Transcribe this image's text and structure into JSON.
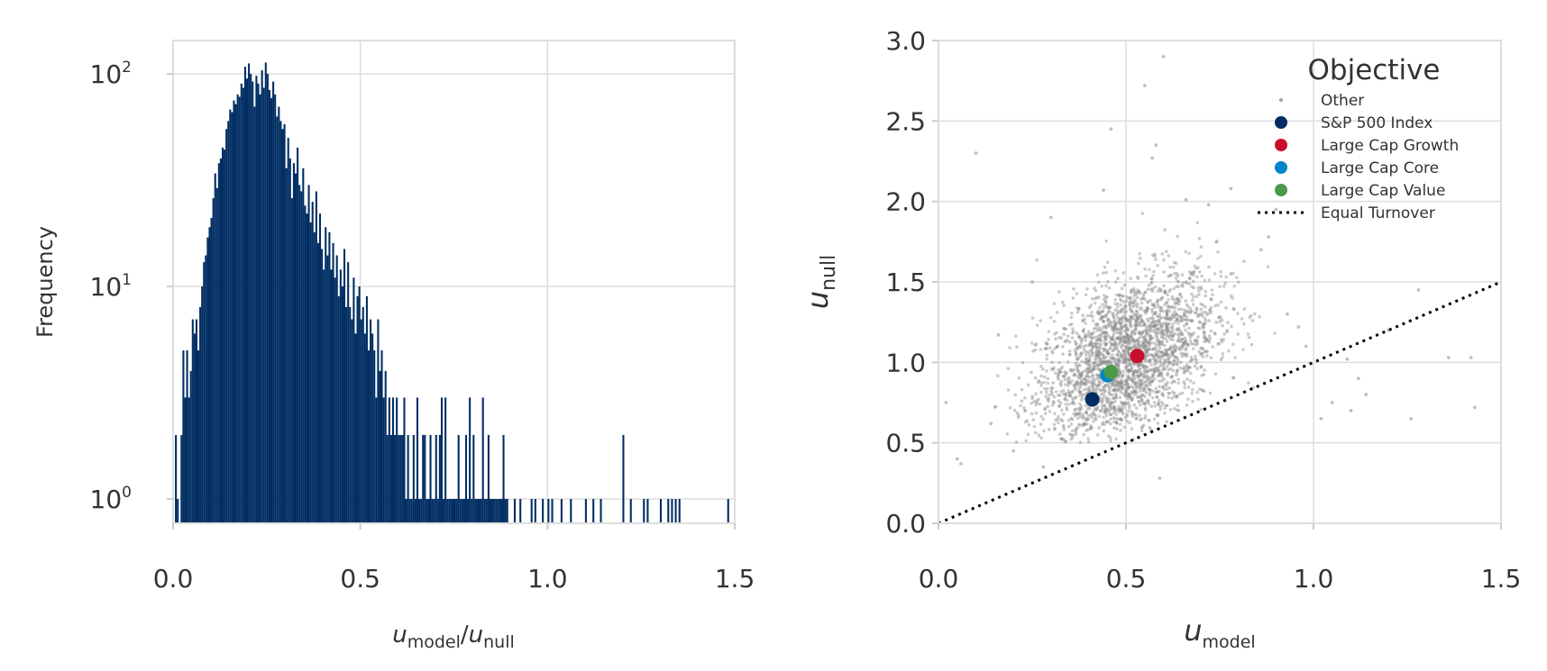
{
  "chart_data": [
    {
      "type": "bar",
      "subtype": "histogram",
      "ylabel": "Frequency",
      "yscale": "log",
      "xlim": [
        0,
        1.5
      ],
      "ylim": [
        0.8,
        150
      ],
      "x_ticks": [
        "0.0",
        "0.5",
        "1.0",
        "1.5"
      ],
      "y_ticks": [
        {
          "base": "10",
          "exp": "2",
          "value": 100
        },
        {
          "base": "10",
          "exp": "1",
          "value": 10
        },
        {
          "base": "10",
          "exp": "0",
          "value": 1
        }
      ],
      "xlabel": {
        "var1": "u",
        "sub1": "model",
        "sep": "/",
        "var2": "u",
        "sub2": "null"
      },
      "grid": true,
      "color": "#002d62",
      "bin_width": 0.005,
      "bins": [
        [
          0.005,
          2
        ],
        [
          0.01,
          1
        ],
        [
          0.02,
          2
        ],
        [
          0.025,
          5
        ],
        [
          0.03,
          3
        ],
        [
          0.035,
          5
        ],
        [
          0.04,
          3
        ],
        [
          0.045,
          4
        ],
        [
          0.05,
          7
        ],
        [
          0.055,
          6
        ],
        [
          0.06,
          7
        ],
        [
          0.065,
          5
        ],
        [
          0.07,
          8
        ],
        [
          0.075,
          10
        ],
        [
          0.08,
          13
        ],
        [
          0.085,
          14
        ],
        [
          0.09,
          17
        ],
        [
          0.095,
          19
        ],
        [
          0.1,
          21
        ],
        [
          0.105,
          26
        ],
        [
          0.11,
          34
        ],
        [
          0.115,
          29
        ],
        [
          0.12,
          38
        ],
        [
          0.125,
          40
        ],
        [
          0.13,
          45
        ],
        [
          0.135,
          44
        ],
        [
          0.14,
          55
        ],
        [
          0.145,
          60
        ],
        [
          0.15,
          68
        ],
        [
          0.155,
          66
        ],
        [
          0.16,
          75
        ],
        [
          0.165,
          72
        ],
        [
          0.17,
          80
        ],
        [
          0.175,
          78
        ],
        [
          0.18,
          90
        ],
        [
          0.185,
          86
        ],
        [
          0.19,
          108
        ],
        [
          0.195,
          95
        ],
        [
          0.2,
          112
        ],
        [
          0.205,
          100
        ],
        [
          0.21,
          92
        ],
        [
          0.215,
          70
        ],
        [
          0.22,
          98
        ],
        [
          0.225,
          90
        ],
        [
          0.23,
          80
        ],
        [
          0.235,
          104
        ],
        [
          0.24,
          86
        ],
        [
          0.245,
          113
        ],
        [
          0.25,
          100
        ],
        [
          0.255,
          84
        ],
        [
          0.26,
          77
        ],
        [
          0.265,
          92
        ],
        [
          0.27,
          80
        ],
        [
          0.275,
          63
        ],
        [
          0.28,
          70
        ],
        [
          0.285,
          60
        ],
        [
          0.29,
          55
        ],
        [
          0.295,
          58
        ],
        [
          0.3,
          36
        ],
        [
          0.305,
          50
        ],
        [
          0.31,
          40
        ],
        [
          0.315,
          26
        ],
        [
          0.32,
          38
        ],
        [
          0.325,
          34
        ],
        [
          0.33,
          45
        ],
        [
          0.335,
          30
        ],
        [
          0.34,
          28
        ],
        [
          0.345,
          36
        ],
        [
          0.35,
          24
        ],
        [
          0.355,
          22
        ],
        [
          0.36,
          30
        ],
        [
          0.365,
          20
        ],
        [
          0.37,
          25
        ],
        [
          0.375,
          18
        ],
        [
          0.38,
          28
        ],
        [
          0.385,
          16
        ],
        [
          0.39,
          22
        ],
        [
          0.395,
          15
        ],
        [
          0.4,
          12
        ],
        [
          0.405,
          19
        ],
        [
          0.41,
          14
        ],
        [
          0.415,
          18
        ],
        [
          0.42,
          12
        ],
        [
          0.425,
          16
        ],
        [
          0.43,
          11
        ],
        [
          0.435,
          14
        ],
        [
          0.44,
          9
        ],
        [
          0.445,
          12
        ],
        [
          0.45,
          10
        ],
        [
          0.455,
          15
        ],
        [
          0.46,
          8
        ],
        [
          0.465,
          13
        ],
        [
          0.47,
          8
        ],
        [
          0.475,
          7
        ],
        [
          0.48,
          11
        ],
        [
          0.485,
          6
        ],
        [
          0.49,
          9
        ],
        [
          0.495,
          10
        ],
        [
          0.5,
          7
        ],
        [
          0.505,
          8
        ],
        [
          0.51,
          6
        ],
        [
          0.515,
          9
        ],
        [
          0.52,
          5
        ],
        [
          0.525,
          7
        ],
        [
          0.53,
          6
        ],
        [
          0.535,
          5
        ],
        [
          0.54,
          3
        ],
        [
          0.545,
          7
        ],
        [
          0.55,
          4
        ],
        [
          0.555,
          5
        ],
        [
          0.56,
          3
        ],
        [
          0.565,
          4
        ],
        [
          0.57,
          2
        ],
        [
          0.575,
          3
        ],
        [
          0.58,
          2
        ],
        [
          0.585,
          3
        ],
        [
          0.59,
          2
        ],
        [
          0.595,
          3
        ],
        [
          0.6,
          2
        ],
        [
          0.605,
          2
        ],
        [
          0.61,
          2
        ],
        [
          0.615,
          3
        ],
        [
          0.62,
          1
        ],
        [
          0.625,
          2
        ],
        [
          0.63,
          1
        ],
        [
          0.635,
          1
        ],
        [
          0.64,
          2
        ],
        [
          0.645,
          1
        ],
        [
          0.65,
          3
        ],
        [
          0.655,
          1
        ],
        [
          0.66,
          1
        ],
        [
          0.665,
          2
        ],
        [
          0.67,
          2
        ],
        [
          0.675,
          1
        ],
        [
          0.68,
          1
        ],
        [
          0.685,
          2
        ],
        [
          0.69,
          1
        ],
        [
          0.695,
          1
        ],
        [
          0.7,
          2
        ],
        [
          0.705,
          1
        ],
        [
          0.71,
          2
        ],
        [
          0.715,
          3
        ],
        [
          0.72,
          1
        ],
        [
          0.725,
          3
        ],
        [
          0.73,
          1
        ],
        [
          0.735,
          1
        ],
        [
          0.74,
          1
        ],
        [
          0.745,
          1
        ],
        [
          0.75,
          1
        ],
        [
          0.755,
          1
        ],
        [
          0.76,
          2
        ],
        [
          0.765,
          1
        ],
        [
          0.77,
          1
        ],
        [
          0.775,
          1
        ],
        [
          0.78,
          2
        ],
        [
          0.785,
          1
        ],
        [
          0.79,
          3
        ],
        [
          0.795,
          1
        ],
        [
          0.8,
          2
        ],
        [
          0.805,
          1
        ],
        [
          0.81,
          1
        ],
        [
          0.815,
          1
        ],
        [
          0.82,
          1
        ],
        [
          0.825,
          3
        ],
        [
          0.83,
          1
        ],
        [
          0.835,
          1
        ],
        [
          0.84,
          2
        ],
        [
          0.845,
          1
        ],
        [
          0.85,
          1
        ],
        [
          0.855,
          1
        ],
        [
          0.86,
          1
        ],
        [
          0.865,
          1
        ],
        [
          0.87,
          1
        ],
        [
          0.875,
          1
        ],
        [
          0.88,
          2
        ],
        [
          0.885,
          1
        ],
        [
          0.89,
          1
        ],
        [
          0.91,
          1
        ],
        [
          0.925,
          1
        ],
        [
          0.955,
          1
        ],
        [
          0.965,
          1
        ],
        [
          0.985,
          1
        ],
        [
          1.0,
          1
        ],
        [
          1.01,
          1
        ],
        [
          1.035,
          1
        ],
        [
          1.06,
          1
        ],
        [
          1.1,
          1
        ],
        [
          1.12,
          1
        ],
        [
          1.14,
          1
        ],
        [
          1.2,
          2
        ],
        [
          1.22,
          1
        ],
        [
          1.255,
          1
        ],
        [
          1.265,
          1
        ],
        [
          1.3,
          1
        ],
        [
          1.32,
          1
        ],
        [
          1.33,
          1
        ],
        [
          1.34,
          1
        ],
        [
          1.35,
          1
        ],
        [
          1.48,
          1
        ]
      ]
    },
    {
      "type": "scatter",
      "xlim": [
        0,
        1.5
      ],
      "ylim": [
        0,
        3.0
      ],
      "x_ticks": [
        "0.0",
        "0.5",
        "1.0",
        "1.5"
      ],
      "y_ticks": [
        "0.0",
        "0.5",
        "1.0",
        "1.5",
        "2.0",
        "2.5",
        "3.0"
      ],
      "xlabel": {
        "var": "u",
        "sub": "model"
      },
      "ylabel": {
        "var": "u",
        "sub": "null"
      },
      "grid": true,
      "legend": {
        "title": "Objective",
        "position": "top-right",
        "entries": [
          {
            "label": "Other",
            "color": "#aaaaaa",
            "marker": "small-dot"
          },
          {
            "label": "S&P 500 Index",
            "color": "#002d62",
            "marker": "dot"
          },
          {
            "label": "Large Cap Growth",
            "color": "#c8102e",
            "marker": "dot"
          },
          {
            "label": "Large Cap Core",
            "color": "#0085ca",
            "marker": "dot"
          },
          {
            "label": "Large Cap Value",
            "color": "#4a9a4a",
            "marker": "dot"
          },
          {
            "label": "Equal Turnover",
            "color": "#000000",
            "marker": "dotted-line"
          }
        ]
      },
      "series": [
        {
          "name": "S&P 500 Index",
          "color": "#002d62",
          "points": [
            [
              0.41,
              0.77
            ]
          ]
        },
        {
          "name": "Large Cap Growth",
          "color": "#c8102e",
          "points": [
            [
              0.53,
              1.04
            ]
          ]
        },
        {
          "name": "Large Cap Core",
          "color": "#0085ca",
          "points": [
            [
              0.45,
              0.92
            ]
          ]
        },
        {
          "name": "Large Cap Value",
          "color": "#4a9a4a",
          "points": [
            [
              0.46,
              0.94
            ]
          ]
        }
      ],
      "other": {
        "name": "Other",
        "color": "#8c8c8c",
        "approx_count": 2600,
        "center": [
          0.5,
          1.02
        ],
        "spread": [
          0.12,
          0.27
        ],
        "outliers": [
          [
            0.02,
            0.75
          ],
          [
            0.05,
            0.4
          ],
          [
            0.06,
            0.37
          ],
          [
            0.1,
            2.3
          ],
          [
            0.14,
            0.62
          ],
          [
            0.16,
            1.17
          ],
          [
            0.2,
            0.45
          ],
          [
            0.25,
            1.5
          ],
          [
            0.28,
            0.35
          ],
          [
            0.3,
            1.9
          ],
          [
            0.44,
            2.07
          ],
          [
            0.46,
            2.45
          ],
          [
            0.55,
            2.72
          ],
          [
            0.6,
            2.9
          ],
          [
            0.58,
            2.35
          ],
          [
            0.57,
            2.27
          ],
          [
            0.59,
            0.28
          ],
          [
            0.66,
            2.01
          ],
          [
            0.72,
            1.98
          ],
          [
            0.78,
            2.08
          ],
          [
            0.78,
            1.55
          ],
          [
            0.86,
            1.7
          ],
          [
            0.88,
            1.78
          ],
          [
            0.9,
            1.95
          ],
          [
            0.93,
            1.3
          ],
          [
            0.96,
            1.22
          ],
          [
            0.98,
            1.1
          ],
          [
            1.02,
            0.65
          ],
          [
            1.05,
            0.75
          ],
          [
            1.09,
            1.02
          ],
          [
            1.1,
            0.7
          ],
          [
            1.12,
            0.9
          ],
          [
            1.14,
            0.8
          ],
          [
            1.2,
            1.2
          ],
          [
            1.26,
            0.65
          ],
          [
            1.28,
            1.45
          ],
          [
            1.36,
            1.03
          ],
          [
            1.42,
            1.03
          ],
          [
            1.43,
            0.72
          ]
        ]
      },
      "reference_line": {
        "name": "Equal Turnover",
        "from": [
          0,
          0
        ],
        "to": [
          1.5,
          1.5
        ],
        "style": "dotted",
        "color": "#000000"
      }
    }
  ]
}
